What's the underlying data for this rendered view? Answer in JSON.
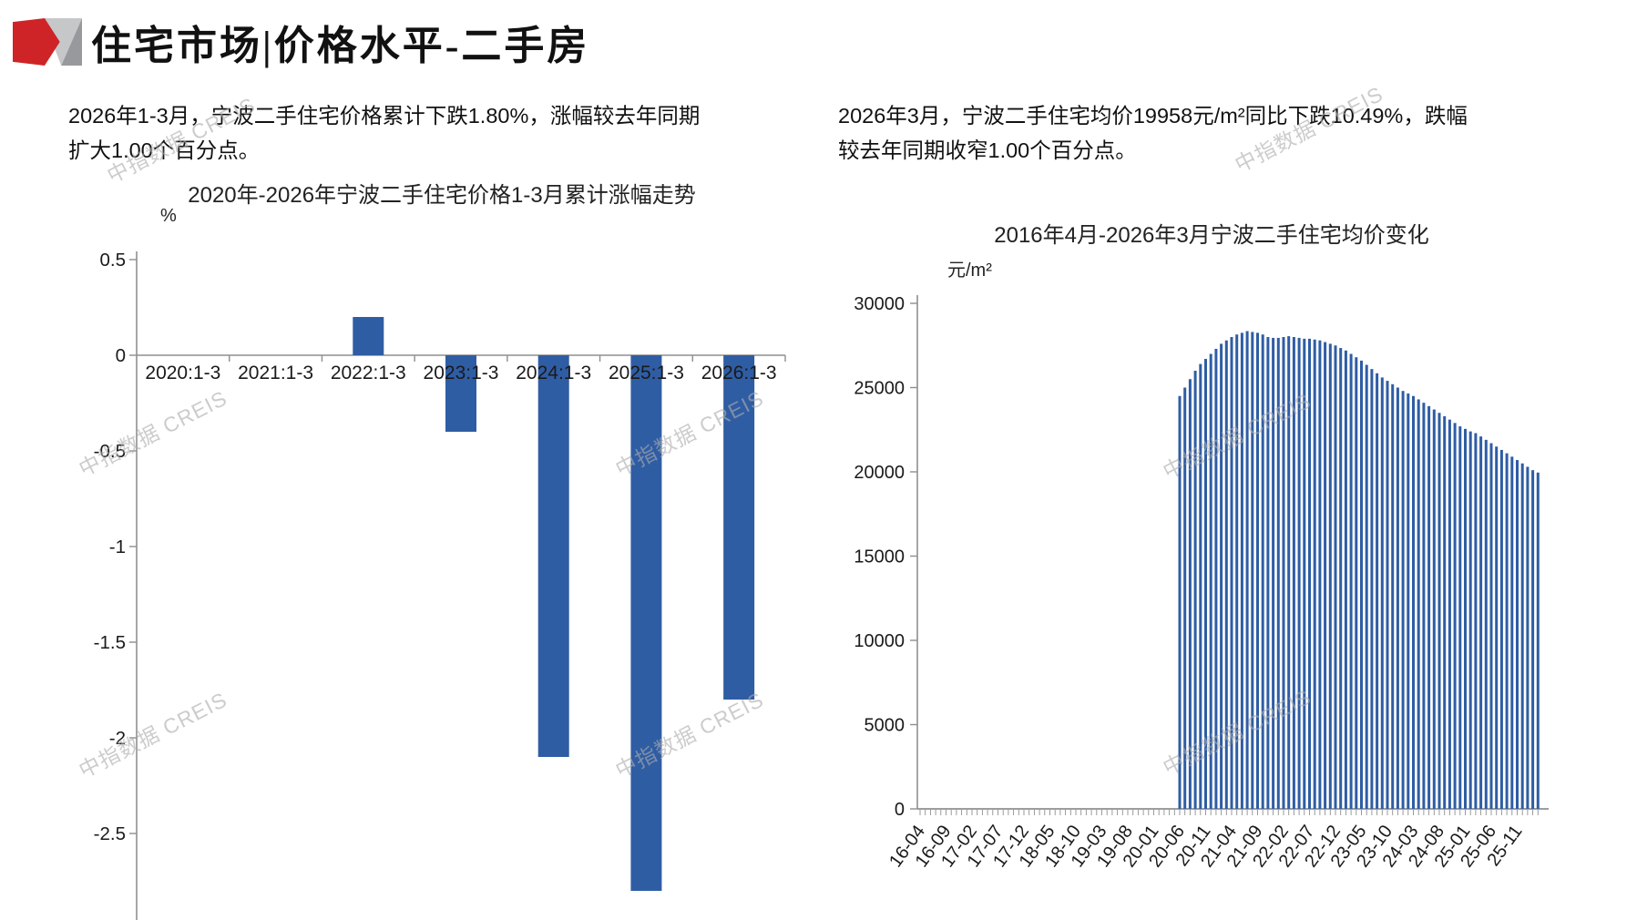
{
  "header": {
    "title": "住宅市场|价格水平-二手房",
    "logo_colors": {
      "red": "#CE2427",
      "light_gray": "#C6C7C9",
      "dark_gray": "#97999C"
    }
  },
  "watermark": {
    "text": "中指数据 CREIS"
  },
  "left_section": {
    "summary_line1": "2026年1-3月，宁波二手住宅价格累计下跌1.80%，涨幅较去年同期",
    "summary_line2": "扩大1.00个百分点。"
  },
  "right_section": {
    "summary_line1": "2026年3月，宁波二手住宅均价19958元/m²同比下跌10.49%，跌幅",
    "summary_line2": "较去年同期收窄1.00个百分点。"
  },
  "chart_data": [
    {
      "type": "bar",
      "title": "2020年-2026年宁波二手住宅价格1-3月累计涨幅走势",
      "unit_label": "%",
      "categories": [
        "2020:1-3",
        "2021:1-3",
        "2022:1-3",
        "2023:1-3",
        "2024:1-3",
        "2025:1-3",
        "2026:1-3"
      ],
      "values": [
        0,
        0,
        0.2,
        -0.4,
        -2.1,
        -2.8,
        -1.8
      ],
      "ylim": [
        -2.95,
        0.5
      ],
      "ytick_values": [
        0.5,
        0,
        -0.5,
        -1,
        -1.5,
        -2,
        -2.5
      ],
      "ytick_labels": [
        "0.5",
        "0",
        "-0.5",
        "-1",
        "-1.5",
        "-2",
        "-2.5"
      ],
      "grid": false,
      "legend": "none",
      "bar_color": "#2F5DA4",
      "axis_color": "#8F8F8F"
    },
    {
      "type": "bar",
      "title": "2016年4月-2026年3月宁波二手住宅均价变化",
      "unit_label": "元/m²",
      "x_period": "monthly 2016-04 to 2026-03",
      "months_total": 120,
      "xtick_every": 5,
      "xtick_labels": [
        "16-04",
        "16-09",
        "17-02",
        "17-07",
        "17-12",
        "18-05",
        "18-10",
        "19-03",
        "19-08",
        "20-01",
        "20-06",
        "20-11",
        "21-04",
        "21-09",
        "22-02",
        "22-07",
        "22-12",
        "23-05",
        "23-10",
        "24-03",
        "24-08",
        "25-01",
        "25-06",
        "25-11"
      ],
      "first_bar_month": "2020-06",
      "first_bar_index": 50,
      "values": [
        24500,
        25000,
        25500,
        26000,
        26400,
        26700,
        27000,
        27300,
        27600,
        27800,
        28000,
        28150,
        28250,
        28350,
        28300,
        28250,
        28150,
        28000,
        27950,
        27950,
        28000,
        28050,
        28000,
        27950,
        27900,
        27900,
        27850,
        27800,
        27700,
        27600,
        27500,
        27350,
        27200,
        27000,
        26800,
        26600,
        26350,
        26100,
        25850,
        25600,
        25400,
        25200,
        25000,
        24800,
        24650,
        24500,
        24300,
        24100,
        23900,
        23700,
        23500,
        23300,
        23100,
        22900,
        22700,
        22550,
        22400,
        22297,
        22100,
        21900,
        21700,
        21500,
        21300,
        21100,
        20900,
        20700,
        20500,
        20300,
        20100,
        19958
      ],
      "last_value": 19958,
      "ylim": [
        0,
        30000
      ],
      "ytick_values": [
        0,
        5000,
        10000,
        15000,
        20000,
        25000,
        30000
      ],
      "grid": false,
      "legend": "none",
      "bar_color": "#2F5DA4",
      "axis_color": "#8F8F8F"
    }
  ]
}
